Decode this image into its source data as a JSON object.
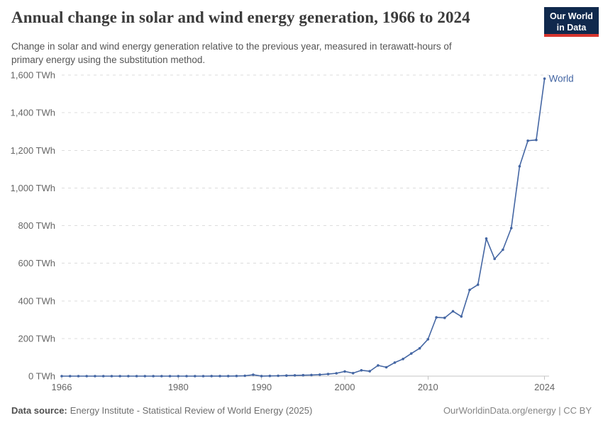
{
  "header": {
    "subtitle": "Change in solar and wind energy generation relative to the previous year, measured in terawatt-hours of primary energy using the substitution method.",
    "logo": {
      "line1": "Our World",
      "line2": "in Data"
    }
  },
  "chart_data": {
    "type": "line",
    "title": "Annual change in solar and wind energy generation, 1966 to 2024",
    "xlabel": "",
    "ylabel": "",
    "xlim": [
      1966,
      2024
    ],
    "ylim": [
      0,
      1600
    ],
    "x_ticks": [
      1966,
      1980,
      1990,
      2000,
      2010,
      2024
    ],
    "y_ticks": [
      0,
      200,
      400,
      600,
      800,
      1000,
      1200,
      1400,
      1600
    ],
    "y_tick_suffix": " TWh",
    "grid": "horizontal-dashed",
    "legend_position": "end-of-line-label",
    "categories": [
      1966,
      1967,
      1968,
      1969,
      1970,
      1971,
      1972,
      1973,
      1974,
      1975,
      1976,
      1977,
      1978,
      1979,
      1980,
      1981,
      1982,
      1983,
      1984,
      1985,
      1986,
      1987,
      1988,
      1989,
      1990,
      1991,
      1992,
      1993,
      1994,
      1995,
      1996,
      1997,
      1998,
      1999,
      2000,
      2001,
      2002,
      2003,
      2004,
      2005,
      2006,
      2007,
      2008,
      2009,
      2010,
      2011,
      2012,
      2013,
      2014,
      2015,
      2016,
      2017,
      2018,
      2019,
      2020,
      2021,
      2022,
      2023,
      2024
    ],
    "series": [
      {
        "name": "World",
        "color": "#4466a3",
        "values": [
          0,
          0,
          0,
          0,
          0,
          0,
          0,
          0,
          0,
          0,
          0,
          0,
          0,
          0,
          0,
          0,
          0,
          0.1,
          0.2,
          0.3,
          0.5,
          0.8,
          2,
          7,
          0.5,
          1,
          2,
          3,
          4,
          5,
          6,
          8,
          11,
          15,
          25,
          16,
          31,
          26,
          57,
          47,
          72,
          91,
          120,
          148,
          196,
          312,
          310,
          345,
          317,
          458,
          486,
          731,
          623,
          672,
          787,
          1115,
          1251,
          1255,
          1581
        ]
      }
    ]
  },
  "footer": {
    "datasource_label": "Data source:",
    "datasource_text": "Energy Institute - Statistical Review of World Energy (2025)",
    "rights": "OurWorldinData.org/energy | CC BY"
  },
  "colors": {
    "line": "#4466a3",
    "grid": "#dcdcdc",
    "axis_line": "#c4c4c4",
    "axis_label": "#666666",
    "logo_bg": "#10294d",
    "logo_accent": "#d7352e"
  }
}
